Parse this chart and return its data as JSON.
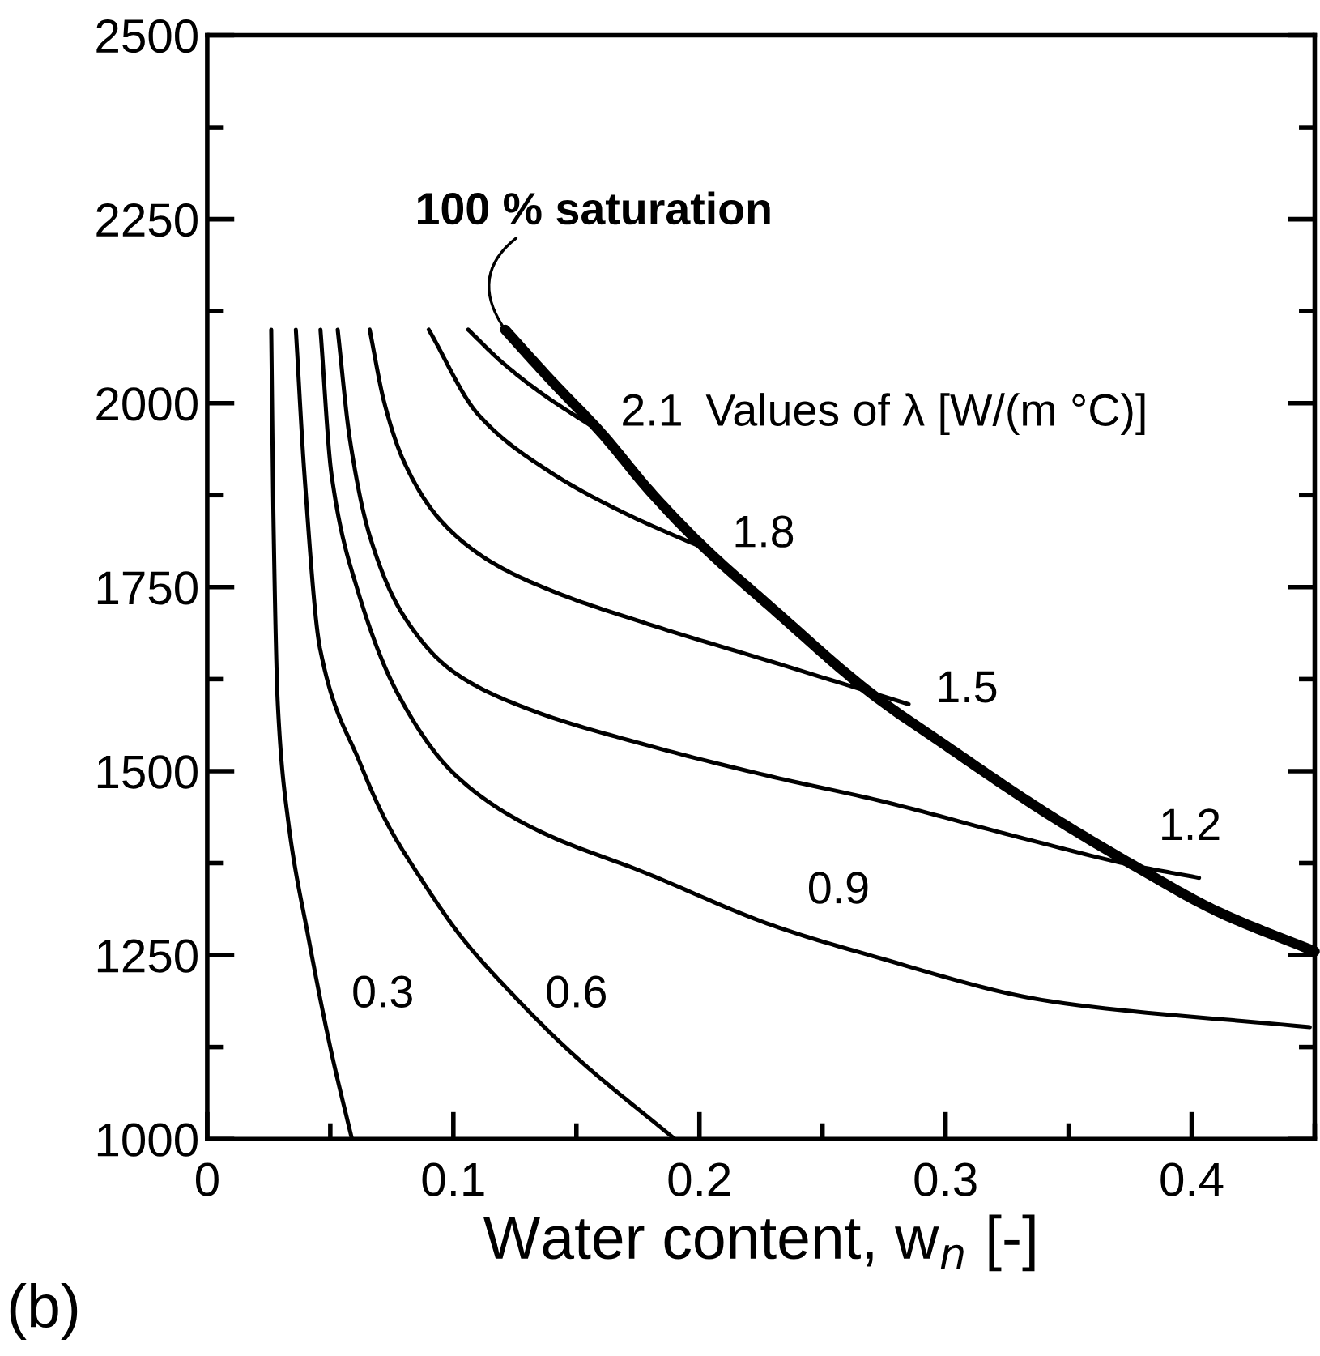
{
  "chart_data": {
    "type": "line",
    "xlabel": "Water content, w$_{n}$ [-]",
    "xlim": [
      0,
      0.45
    ],
    "ylim": [
      1000,
      2500
    ],
    "xticks": [
      0,
      0.1,
      0.2,
      0.3,
      0.4
    ],
    "yticks": [
      1000,
      1250,
      1500,
      1750,
      2000,
      2250,
      2500
    ],
    "grid": false,
    "legend": false,
    "marker": "none",
    "line_style": "solid",
    "series": [
      {
        "name": "0.3",
        "color": "#000000",
        "x": [
          0.026,
          0.027,
          0.0287,
          0.0329,
          0.0411,
          0.0505,
          0.0588
        ],
        "values": [
          2100,
          1825,
          1589,
          1432,
          1274,
          1117,
          1000
        ]
      },
      {
        "name": "0.6",
        "color": "#000000",
        "x": [
          0.036,
          0.0395,
          0.0458,
          0.0622,
          0.0728,
          0.087,
          0.1034,
          0.1245,
          0.148,
          0.19
        ],
        "values": [
          2100,
          1903,
          1667,
          1510,
          1431,
          1353,
          1274,
          1195,
          1117,
          1000
        ]
      },
      {
        "name": "0.9",
        "color": "#000000",
        "x": [
          0.046,
          0.0505,
          0.0611,
          0.0776,
          0.101,
          0.1316,
          0.1786,
          0.23,
          0.268,
          0.343,
          0.448
        ],
        "values": [
          2100,
          1903,
          1746,
          1604,
          1494,
          1424,
          1361,
          1290,
          1251,
          1187,
          1152
        ]
      },
      {
        "name": "1.2",
        "color": "#000000",
        "x": [
          0.053,
          0.058,
          0.066,
          0.08,
          0.1,
          0.13,
          0.179,
          0.23,
          0.273,
          0.33,
          0.376,
          0.403
        ],
        "values": [
          2100,
          1950,
          1820,
          1710,
          1635,
          1585,
          1535,
          1492,
          1460,
          1410,
          1372,
          1355
        ]
      },
      {
        "name": "1.5",
        "color": "#000000",
        "x": [
          0.066,
          0.072,
          0.08,
          0.095,
          0.115,
          0.14,
          0.179,
          0.23,
          0.285
        ],
        "values": [
          2100,
          2000,
          1920,
          1840,
          1785,
          1745,
          1700,
          1648,
          1591
        ]
      },
      {
        "name": "1.8",
        "color": "#000000",
        "x": [
          0.09,
          0.11,
          0.14,
          0.17,
          0.2024
        ],
        "values": [
          2100,
          1985,
          1905,
          1850,
          1802
        ]
      },
      {
        "name": "2.1",
        "color": "#000000",
        "x": [
          0.106,
          0.12,
          0.136,
          0.157
        ],
        "values": [
          2100,
          2055,
          2013,
          1967
        ]
      },
      {
        "name": "100 % saturation",
        "color": "#000000",
        "x": [
          0.121,
          0.14,
          0.16,
          0.18,
          0.2,
          0.23,
          0.27,
          0.3,
          0.34,
          0.38,
          0.41,
          0.45
        ],
        "values": [
          2100,
          2030,
          1960,
          1880,
          1810,
          1720,
          1605,
          1535,
          1445,
          1365,
          1310,
          1255
        ]
      }
    ],
    "annotations": [
      "Values of λ [W/(m °C)]",
      "(b)"
    ]
  }
}
